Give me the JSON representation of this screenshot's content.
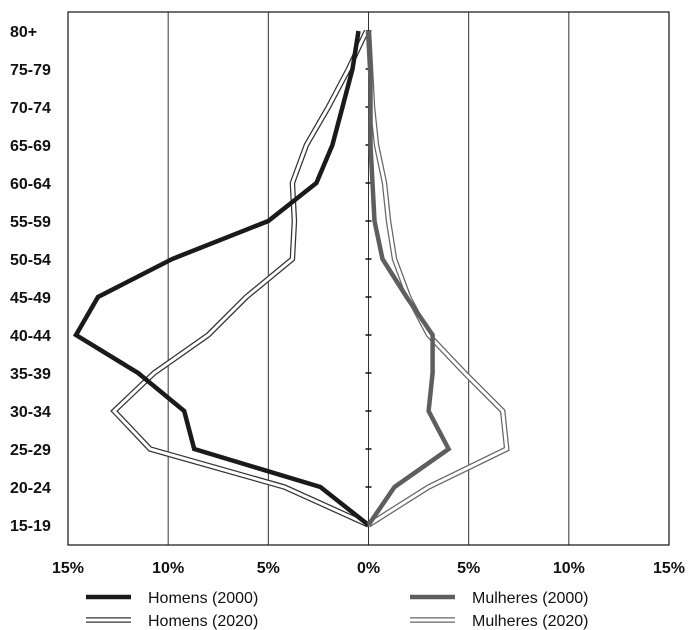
{
  "chart_data": {
    "type": "line",
    "categories": [
      "15-19",
      "20-24",
      "25-29",
      "30-34",
      "35-39",
      "40-44",
      "45-49",
      "50-54",
      "55-59",
      "60-64",
      "65-69",
      "70-74",
      "75-79",
      "80+"
    ],
    "x_tick_labels": [
      "15%",
      "10%",
      "5%",
      "0%",
      "5%",
      "10%",
      "15%"
    ],
    "x_tick_values": [
      -15,
      -10,
      -5,
      0,
      5,
      10,
      15
    ],
    "xlim": [
      -15,
      15
    ],
    "grid": true,
    "legend_position": "bottom",
    "series": [
      {
        "name": "Homens (2000)",
        "style": "thick-dark",
        "values": [
          0.0,
          -2.4,
          -8.7,
          -9.2,
          -11.5,
          -14.6,
          -13.5,
          -9.8,
          -5.0,
          -2.6,
          -1.8,
          -1.3,
          -0.8,
          -0.5
        ]
      },
      {
        "name": "Homens (2020)",
        "style": "hollow",
        "values": [
          0.0,
          -4.2,
          -10.9,
          -12.7,
          -10.7,
          -8.0,
          -6.1,
          -3.8,
          -3.7,
          -3.8,
          -3.1,
          -2.0,
          -1.0,
          -0.1
        ]
      },
      {
        "name": "Mulheres (2000)",
        "style": "thick-gray",
        "values": [
          0.0,
          1.3,
          4.0,
          3.0,
          3.2,
          3.2,
          1.9,
          0.7,
          0.3,
          0.2,
          0.1,
          0.1,
          0.1,
          0.0
        ]
      },
      {
        "name": "Mulheres (2020)",
        "style": "hollow-gray",
        "values": [
          0.0,
          3.0,
          6.9,
          6.7,
          4.8,
          3.0,
          2.0,
          1.3,
          1.0,
          0.8,
          0.4,
          0.2,
          0.1,
          0.0
        ]
      }
    ]
  },
  "colors": {
    "axis": "#111111",
    "grid": "#333333",
    "homens_2000": "#1a1a1a",
    "homens_2020_outline": "#333333",
    "mulheres_2000": "#5e5e5e",
    "mulheres_2020_outline": "#666666",
    "background": "#ffffff"
  }
}
